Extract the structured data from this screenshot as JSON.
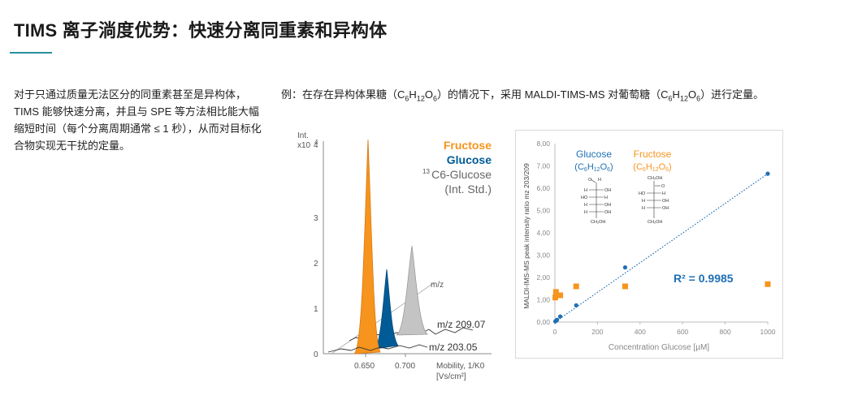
{
  "header": {
    "title": "TIMS 离子淌度优势：快速分离同重素和异构体"
  },
  "intro": {
    "paragraph": "对于只通过质量无法区分的同重素甚至是异构体，TIMS 能够快速分离，并且与 SPE 等方法相比能大幅缩短时间（每个分离周期通常 ≤ 1 秒），从而对目标化合物实现无干扰的定量。"
  },
  "example": {
    "prefix": "例：在存在异构体果糖（",
    "formula1": {
      "c": "C",
      "c_n": "6",
      "h": "H",
      "h_n": "12",
      "o": "O",
      "o_n": "6"
    },
    "middle": "）的情况下，采用 MALDI-TIMS-MS 对葡萄糖（",
    "formula2": {
      "c": "C",
      "c_n": "6",
      "h": "H",
      "h_n": "12",
      "o": "O",
      "o_n": "6"
    },
    "suffix": "）进行定量。"
  },
  "mobility_chart": {
    "y_unit_line1": "Int.",
    "y_unit_line2": "x10",
    "y_unit_exp": "4",
    "y_ticks": [
      "4",
      "3",
      "2",
      "1",
      "0"
    ],
    "x_ticks": [
      "0.650",
      "0.700"
    ],
    "x_label_line1": "Mobility, 1/K0",
    "x_label_line2": "[Vs/cm²]",
    "legend": {
      "fructose": "Fructose",
      "glucose": "Glucose",
      "c13_prefix": "13",
      "c13_label": "C6-Glucose",
      "int_std": "(Int. Std.)"
    },
    "axis_label_mz": "m/z",
    "trace_209": "m/z 209.07",
    "trace_203": "m/z 203.05",
    "colors": {
      "fructose": "#f7941d",
      "glucose": "#005b96",
      "c13": "#bdbdbd"
    }
  },
  "chart_data": {
    "type": "scatter",
    "ylabel": "MALDI-IMS-MS peak intensity ratio mz 203/209",
    "xlabel": "Concentration Glucose [µM]",
    "xlim": [
      0,
      1000
    ],
    "ylim": [
      0,
      8
    ],
    "x_ticks": [
      "0",
      "200",
      "400",
      "600",
      "800",
      "1000"
    ],
    "y_ticks": [
      "0,00",
      "1,00",
      "2,00",
      "3,00",
      "4,00",
      "5,00",
      "6,00",
      "7,00",
      "8,00"
    ],
    "r2_label": "R² = 0.9985",
    "series": [
      {
        "name": "Glucose",
        "color": "#1f6fb5",
        "points": [
          [
            2,
            0.03
          ],
          [
            5,
            0.06
          ],
          [
            10,
            0.1
          ],
          [
            25,
            0.25
          ],
          [
            100,
            0.75
          ],
          [
            330,
            2.45
          ],
          [
            1000,
            6.65
          ]
        ]
      },
      {
        "name": "Fructose",
        "color": "#f7941d",
        "points": [
          [
            2,
            1.1
          ],
          [
            5,
            1.35
          ],
          [
            10,
            1.2
          ],
          [
            25,
            1.2
          ],
          [
            100,
            1.6
          ],
          [
            330,
            1.6
          ],
          [
            1000,
            1.7
          ]
        ]
      }
    ],
    "trendline": {
      "color": "#1f6fb5",
      "from": [
        0,
        0.0
      ],
      "to": [
        1000,
        6.65
      ]
    },
    "legend": {
      "glucose_title": "Glucose",
      "fructose_title": "Fructose",
      "formula": {
        "c": "C",
        "c_n": "6",
        "h": "H",
        "h_n": "12",
        "o": "O",
        "o_n": "6"
      }
    },
    "structure_labels": {
      "cho_o": "O",
      "cho_h": "H",
      "h": "H",
      "oh": "OH",
      "ho": "HO",
      "ch2oh": "CH₂OH",
      "co": "O"
    }
  }
}
